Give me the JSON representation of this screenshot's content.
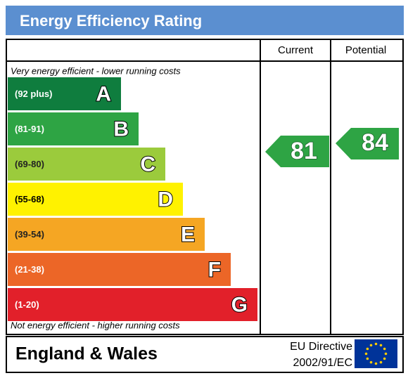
{
  "title": "Energy Efficiency Rating",
  "columns": [
    "Current",
    "Potential"
  ],
  "top_note": "Very energy efficient - lower running costs",
  "bottom_note": "Not energy efficient - higher running costs",
  "bands": [
    {
      "range": "(92 plus)",
      "letter": "A",
      "color": "#0f7d3e"
    },
    {
      "range": "(81-91)",
      "letter": "B",
      "color": "#2ea444"
    },
    {
      "range": "(69-80)",
      "letter": "C",
      "color": "#9bcb3c"
    },
    {
      "range": "(55-68)",
      "letter": "D",
      "color": "#fff200"
    },
    {
      "range": "(39-54)",
      "letter": "E",
      "color": "#f5a623"
    },
    {
      "range": "(21-38)",
      "letter": "F",
      "color": "#ec6627"
    },
    {
      "range": "(1-20)",
      "letter": "G",
      "color": "#e2202a"
    }
  ],
  "current": 81,
  "potential": 84,
  "footer": {
    "region": "England & Wales",
    "directive": "EU Directive",
    "code": "2002/91/EC"
  }
}
